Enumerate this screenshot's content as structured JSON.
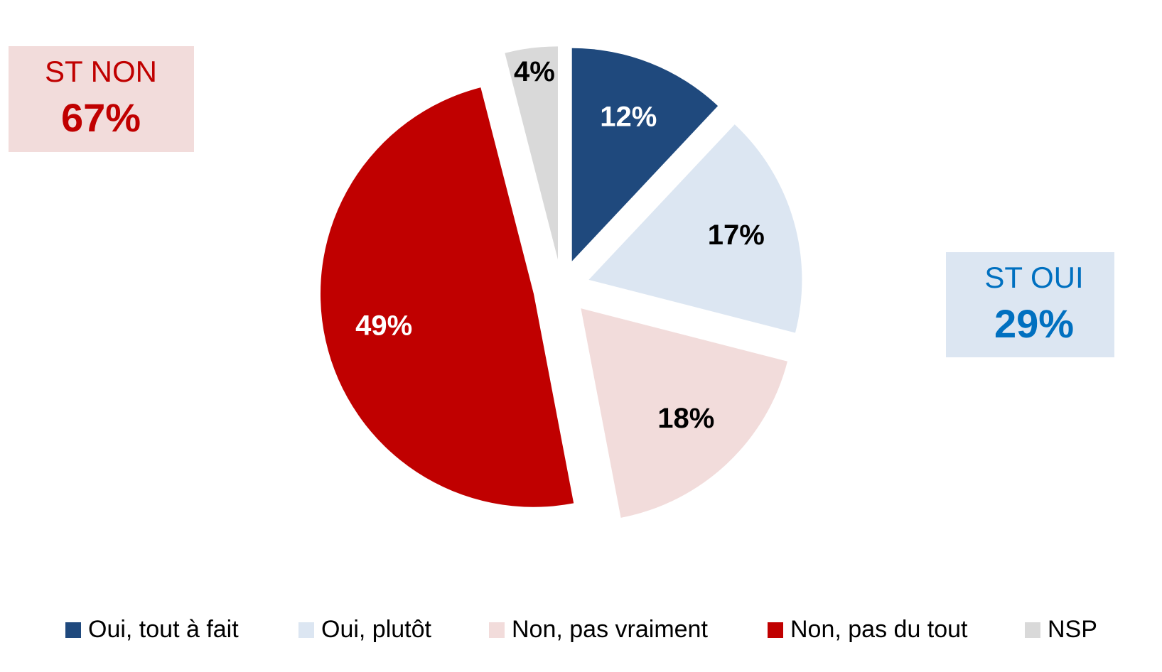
{
  "chart_data": {
    "type": "pie",
    "categories": [
      "Oui, tout à fait",
      "Oui, plutôt",
      "Non, pas vraiment",
      "Non, pas du tout",
      "NSP"
    ],
    "values": [
      12,
      17,
      18,
      49,
      4
    ],
    "value_labels": [
      "12%",
      "17%",
      "18%",
      "49%",
      "4%"
    ],
    "colors": [
      "#1f497d",
      "#dce6f2",
      "#f2dcdb",
      "#c00000",
      "#d9d9d9"
    ],
    "legend": "bottom",
    "annotations": [
      {
        "label": "ST NON",
        "value": "67%"
      },
      {
        "label": "ST OUI",
        "value": "29%"
      }
    ]
  }
}
